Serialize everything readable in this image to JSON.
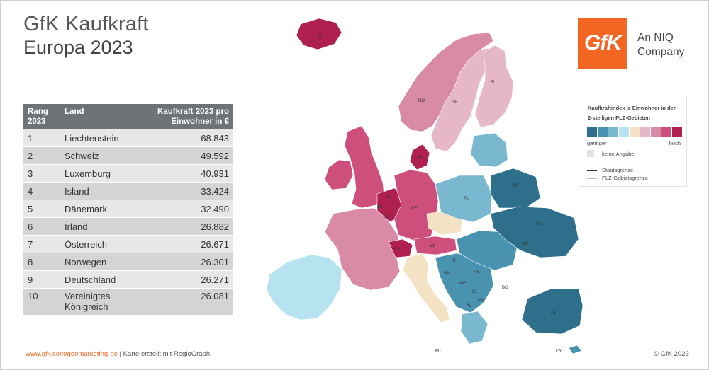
{
  "header": {
    "title_line1": "GfK Kaufkraft",
    "title_line2": "Europa 2023"
  },
  "table": {
    "col_rank": "Rang 2023",
    "col_country": "Land",
    "col_value": "Kaufkraft 2023 pro Einwohner in €",
    "rows": [
      {
        "rank": "1",
        "country": "Liechtenstein",
        "value": "68.843"
      },
      {
        "rank": "2",
        "country": "Schweiz",
        "value": "49.592"
      },
      {
        "rank": "3",
        "country": "Luxemburg",
        "value": "40.931"
      },
      {
        "rank": "4",
        "country": "Island",
        "value": "33.424"
      },
      {
        "rank": "5",
        "country": "Dänemark",
        "value": "32.490"
      },
      {
        "rank": "6",
        "country": "Irland",
        "value": "26.882"
      },
      {
        "rank": "7",
        "country": "Österreich",
        "value": "26.671"
      },
      {
        "rank": "8",
        "country": "Norwegen",
        "value": "26.301"
      },
      {
        "rank": "9",
        "country": "Deutschland",
        "value": "26.271"
      },
      {
        "rank": "10",
        "country": "Vereinigtes Königreich",
        "value": "26.081"
      }
    ]
  },
  "logo": {
    "mark": "GfK",
    "company": "An NIQ Company"
  },
  "legend": {
    "title": "Kaufkraftindex je Einwohner in den 2-stelligen PLZ-Gebieten",
    "low": "geringer",
    "high": "hoch",
    "no_data": "keine Angabe",
    "state_border": "Staatsgrenze",
    "plz_border": "PLZ-Gebietsgrenze",
    "ramp_colors": [
      "#2e6f8c",
      "#4a93b0",
      "#7ab8d0",
      "#b6e3ef",
      "#f4e2c4",
      "#e5b7c8",
      "#d98aa6",
      "#cf4f7c",
      "#b0204f"
    ]
  },
  "map_labels": [
    "IS",
    "NO",
    "SE",
    "FI",
    "DK",
    "NL",
    "BE",
    "LU",
    "DE",
    "PL",
    "CH",
    "AT",
    "BY",
    "UA",
    "MD",
    "HR",
    "BA",
    "RS",
    "ME",
    "KS",
    "MK",
    "AL",
    "BG",
    "TR",
    "MT",
    "CY"
  ],
  "footer": {
    "link": "www.gfk.com/geomarketing-de",
    "text": " | Karte erstellt mit RegioGraph",
    "copyright": "© GfK 2023"
  }
}
